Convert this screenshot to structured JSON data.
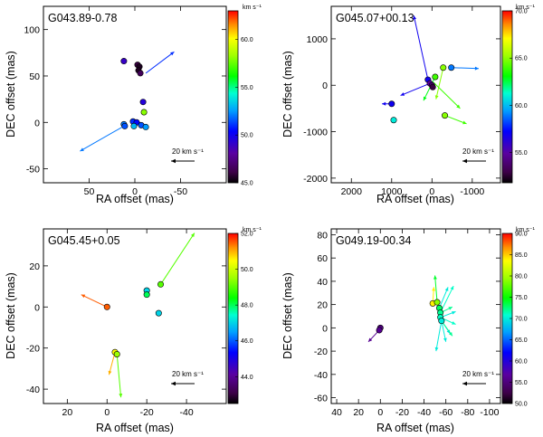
{
  "chart_data": [
    {
      "type": "scatter",
      "title": "G043.89-0.78",
      "xlabel": "RA offset (mas)",
      "ylabel": "DEC offset (mas)",
      "xlim": [
        100,
        -100
      ],
      "ylim": [
        -65,
        125
      ],
      "xticks": [
        50,
        0,
        -50
      ],
      "yticks": [
        -50,
        0,
        50,
        100
      ],
      "colorbar": {
        "unit": "km s⁻¹",
        "min": 45,
        "max": 63,
        "ticks": [
          "45.0",
          "50.0",
          "55.0",
          "60.0"
        ],
        "tick_values": [
          45,
          50,
          55,
          60
        ]
      },
      "scale_label": "20 km s⁻¹",
      "arrow_scale": 1,
      "spots": [
        {
          "x": -3,
          "y": 62,
          "v": 46
        },
        {
          "x": -5,
          "y": 60,
          "v": 45.5
        },
        {
          "x": -4,
          "y": 56,
          "v": 45.5
        },
        {
          "x": -6,
          "y": 53,
          "v": 46.5
        },
        {
          "x": 12,
          "y": 66,
          "v": 49
        },
        {
          "x": -9,
          "y": 22,
          "v": 49.5
        },
        {
          "x": -10,
          "y": 11,
          "v": 58
        },
        {
          "x": 2,
          "y": 1,
          "v": 51
        },
        {
          "x": -2,
          "y": 0,
          "v": 50.5
        },
        {
          "x": -7,
          "y": -3,
          "v": 51.5
        },
        {
          "x": 12,
          "y": -2,
          "v": 52
        },
        {
          "x": 11,
          "y": -4,
          "v": 51.5
        },
        {
          "x": 1,
          "y": -4,
          "v": 53
        },
        {
          "x": -12,
          "y": -5,
          "v": 52.5
        }
      ],
      "vectors": [
        {
          "x0": -12,
          "y0": 53,
          "x1": -43,
          "y1": 76,
          "v": 51
        },
        {
          "x0": 12,
          "y0": -4,
          "x1": 60,
          "y1": -31,
          "v": 52
        }
      ]
    },
    {
      "type": "scatter",
      "title": "G045.07+00.13",
      "xlabel": "RA offset (mas)",
      "ylabel": "DEC offset (mas)",
      "xlim": [
        2500,
        -1700
      ],
      "ylim": [
        -2100,
        1700
      ],
      "xticks": [
        2000,
        1000,
        0,
        -1000
      ],
      "yticks": [
        -2000,
        -1000,
        0,
        1000
      ],
      "colorbar": {
        "unit": "km s⁻¹",
        "min": 52,
        "max": 70,
        "ticks": [
          "55.0",
          "60.0",
          "65.0",
          "70.0"
        ],
        "tick_values": [
          55,
          60,
          65,
          70
        ]
      },
      "scale_label": "20 km s⁻¹",
      "arrow_scale": 1,
      "spots": [
        {
          "x": 100,
          "y": 120,
          "v": 57
        },
        {
          "x": 50,
          "y": 40,
          "v": 55
        },
        {
          "x": 0,
          "y": 0,
          "v": 54
        },
        {
          "x": -20,
          "y": -40,
          "v": 53
        },
        {
          "x": -80,
          "y": 180,
          "v": 64
        },
        {
          "x": -280,
          "y": 380,
          "v": 65
        },
        {
          "x": -480,
          "y": 380,
          "v": 59
        },
        {
          "x": 1000,
          "y": -400,
          "v": 57
        },
        {
          "x": 950,
          "y": -750,
          "v": 61
        },
        {
          "x": -320,
          "y": -650,
          "v": 65
        }
      ],
      "vectors": [
        {
          "x0": 100,
          "y0": 120,
          "x1": 450,
          "y1": 1500,
          "v": 57
        },
        {
          "x0": 50,
          "y0": 40,
          "x1": 780,
          "y1": -220,
          "v": 57
        },
        {
          "x0": -80,
          "y0": 180,
          "x1": 210,
          "y1": -330,
          "v": 63
        },
        {
          "x0": -280,
          "y0": 380,
          "x1": -100,
          "y1": -300,
          "v": 65
        },
        {
          "x0": -40,
          "y0": 60,
          "x1": -700,
          "y1": -500,
          "v": 64
        },
        {
          "x0": -480,
          "y0": 380,
          "x1": -1160,
          "y1": 360,
          "v": 59
        },
        {
          "x0": 1000,
          "y0": -400,
          "x1": 1240,
          "y1": -400,
          "v": 57
        },
        {
          "x0": -320,
          "y0": -650,
          "x1": -860,
          "y1": -830,
          "v": 64
        }
      ]
    },
    {
      "type": "scatter",
      "title": "G045.45+0.05",
      "xlabel": "RA offset (mas)",
      "ylabel": "DEC offset (mas)",
      "xlim": [
        32,
        -60
      ],
      "ylim": [
        -47,
        38
      ],
      "xticks": [
        20,
        0,
        -20,
        -40
      ],
      "yticks": [
        -40,
        -20,
        0,
        20
      ],
      "colorbar": {
        "unit": "km s⁻¹",
        "min": 42.5,
        "max": 52,
        "ticks": [
          "44.0",
          "46.0",
          "48.0",
          "50.0",
          "52.0"
        ],
        "tick_values": [
          44,
          46,
          48,
          50,
          52
        ]
      },
      "scale_label": "20 km s⁻¹",
      "arrow_scale": 1,
      "spots": [
        {
          "x": 0,
          "y": 0,
          "v": 51.5
        },
        {
          "x": -4,
          "y": -22,
          "v": 50.5
        },
        {
          "x": -5,
          "y": -23,
          "v": 49.5
        },
        {
          "x": -20,
          "y": 8,
          "v": 47
        },
        {
          "x": -20,
          "y": 6,
          "v": 48
        },
        {
          "x": -27,
          "y": 11,
          "v": 49
        },
        {
          "x": -26,
          "y": -3,
          "v": 47
        }
      ],
      "vectors": [
        {
          "x0": 0,
          "y0": 0,
          "x1": 13,
          "y1": 6,
          "v": 51.5
        },
        {
          "x0": -4,
          "y0": -22,
          "x1": -1,
          "y1": -33,
          "v": 51
        },
        {
          "x0": -5,
          "y0": -23,
          "x1": -7,
          "y1": -44,
          "v": 49
        },
        {
          "x0": -27,
          "y0": 11,
          "x1": -44,
          "y1": 36,
          "v": 49
        }
      ]
    },
    {
      "type": "scatter",
      "title": "G049.19-00.34",
      "xlabel": "RA offset (mas)",
      "ylabel": "DEC offset (mas)",
      "xlim": [
        45,
        -110
      ],
      "ylim": [
        -65,
        85
      ],
      "xticks": [
        40,
        20,
        0,
        -20,
        -40,
        -60,
        -80,
        -100
      ],
      "yticks": [
        -60,
        -40,
        -20,
        0,
        20,
        40,
        60,
        80
      ],
      "colorbar": {
        "unit": "km s⁻¹",
        "min": 50,
        "max": 90,
        "ticks": [
          "50.0",
          "55.0",
          "60.0",
          "65.0",
          "70.0",
          "75.0",
          "80.0",
          "85.0",
          "90.0"
        ],
        "tick_values": [
          50,
          55,
          60,
          65,
          70,
          75,
          80,
          85,
          90
        ]
      },
      "scale_label": "20 km s⁻¹",
      "arrow_scale": 1,
      "spots": [
        {
          "x": 0,
          "y": 0,
          "v": 55
        },
        {
          "x": 1,
          "y": -2,
          "v": 56
        },
        {
          "x": -48,
          "y": 21,
          "v": 84
        },
        {
          "x": -52,
          "y": 22,
          "v": 79
        },
        {
          "x": -54,
          "y": 17,
          "v": 73
        },
        {
          "x": -55,
          "y": 13,
          "v": 72
        },
        {
          "x": -55,
          "y": 9,
          "v": 71
        },
        {
          "x": -56,
          "y": 6,
          "v": 70
        }
      ],
      "vectors": [
        {
          "x0": 1,
          "y0": -2,
          "x1": 11,
          "y1": -12,
          "v": 56
        },
        {
          "x0": -48,
          "y0": 21,
          "x1": -49,
          "y1": 35,
          "v": 84
        },
        {
          "x0": -52,
          "y0": 22,
          "x1": -50,
          "y1": 45,
          "v": 74
        },
        {
          "x0": -54,
          "y0": 17,
          "x1": -62,
          "y1": 35,
          "v": 70
        },
        {
          "x0": -55,
          "y0": 13,
          "x1": -67,
          "y1": 36,
          "v": 71
        },
        {
          "x0": -55,
          "y0": 13,
          "x1": -66,
          "y1": 18,
          "v": 72
        },
        {
          "x0": -55,
          "y0": 9,
          "x1": -69,
          "y1": 14,
          "v": 70
        },
        {
          "x0": -55,
          "y0": 9,
          "x1": -69,
          "y1": 3,
          "v": 71
        },
        {
          "x0": -56,
          "y0": 6,
          "x1": -60,
          "y1": -12,
          "v": 70
        },
        {
          "x0": -56,
          "y0": 6,
          "x1": -64,
          "y1": -5,
          "v": 69
        },
        {
          "x0": -56,
          "y0": 6,
          "x1": -51,
          "y1": -20,
          "v": 70
        },
        {
          "x0": -56,
          "y0": 6,
          "x1": -66,
          "y1": -7,
          "v": 72
        }
      ]
    }
  ]
}
